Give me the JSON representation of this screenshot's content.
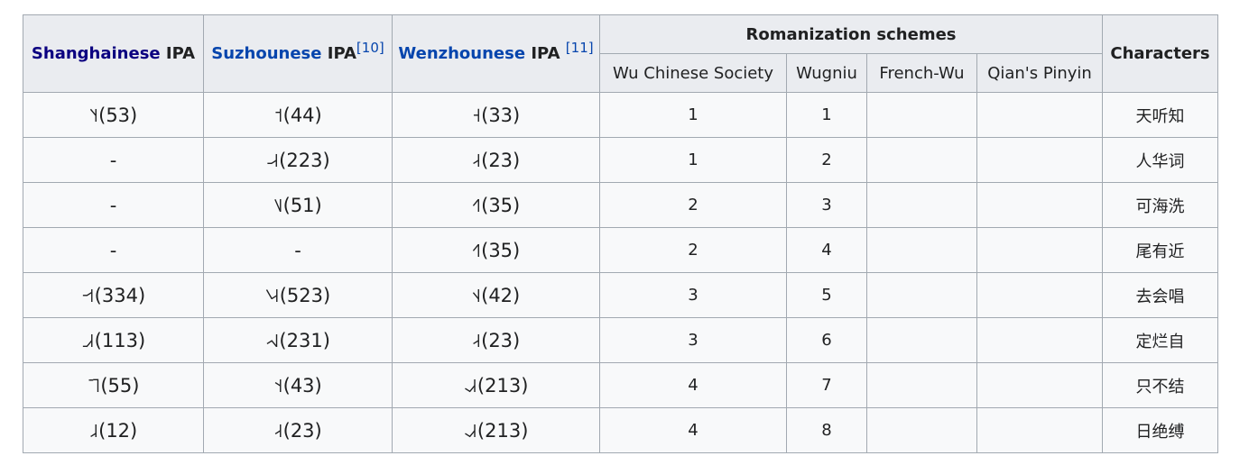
{
  "header": {
    "shanghainese_name": "Shanghainese",
    "suzhounese_name": "Suzhounese",
    "wenzhounese_name": "Wenzhounese",
    "ipa_word": "IPA",
    "suzhounese_ref": "[10]",
    "wenzhounese_ref": "[11]",
    "romanization_group": "Romanization schemes",
    "characters": "Characters",
    "wu_chinese_society": "Wu Chinese Society",
    "wugniu": "Wugniu",
    "french_wu": "French-Wu",
    "qians_pinyin": "Qian's Pinyin"
  },
  "colors": {
    "visited_link": "#0b0080",
    "link": "#0645ad",
    "header_bg": "#eaecf0",
    "cell_bg": "#f8f9fa",
    "border": "#a2a9b1"
  },
  "rows": [
    {
      "shanghainese": "˥˧(53)",
      "suzhounese": "˦(44)",
      "wenzhounese": "˧(33)",
      "wu_chinese_society": "1",
      "wugniu": "1",
      "french_wu": "",
      "qians_pinyin": "",
      "characters": "天听知"
    },
    {
      "shanghainese": "-",
      "suzhounese": "˨˨˧(223)",
      "wenzhounese": "˨˧(23)",
      "wu_chinese_society": "1",
      "wugniu": "2",
      "french_wu": "",
      "qians_pinyin": "",
      "characters": "人华词"
    },
    {
      "shanghainese": "-",
      "suzhounese": "˥˩(51)",
      "wenzhounese": "˧˥(35)",
      "wu_chinese_society": "2",
      "wugniu": "3",
      "french_wu": "",
      "qians_pinyin": "",
      "characters": "可海洗"
    },
    {
      "shanghainese": "-",
      "suzhounese": "-",
      "wenzhounese": "˧˥(35)",
      "wu_chinese_society": "2",
      "wugniu": "4",
      "french_wu": "",
      "qians_pinyin": "",
      "characters": "尾有近"
    },
    {
      "shanghainese": "˧˧˦(334)",
      "suzhounese": "˥˨˧(523)",
      "wenzhounese": "˦˨(42)",
      "wu_chinese_society": "3",
      "wugniu": "5",
      "french_wu": "",
      "qians_pinyin": "",
      "characters": "去会唱"
    },
    {
      "shanghainese": "˩˩˧(113)",
      "suzhounese": "˨˧˩(231)",
      "wenzhounese": "˨˧(23)",
      "wu_chinese_society": "3",
      "wugniu": "6",
      "french_wu": "",
      "qians_pinyin": "",
      "characters": "定烂自"
    },
    {
      "shanghainese": "˥˥(55)",
      "suzhounese": "˦˧(43)",
      "wenzhounese": "˨˩˧(213)",
      "wu_chinese_society": "4",
      "wugniu": "7",
      "french_wu": "",
      "qians_pinyin": "",
      "characters": "只不结"
    },
    {
      "shanghainese": "˩˨(12)",
      "suzhounese": "˨˧(23)",
      "wenzhounese": "˨˩˧(213)",
      "wu_chinese_society": "4",
      "wugniu": "8",
      "french_wu": "",
      "qians_pinyin": "",
      "characters": "日绝缚"
    }
  ]
}
